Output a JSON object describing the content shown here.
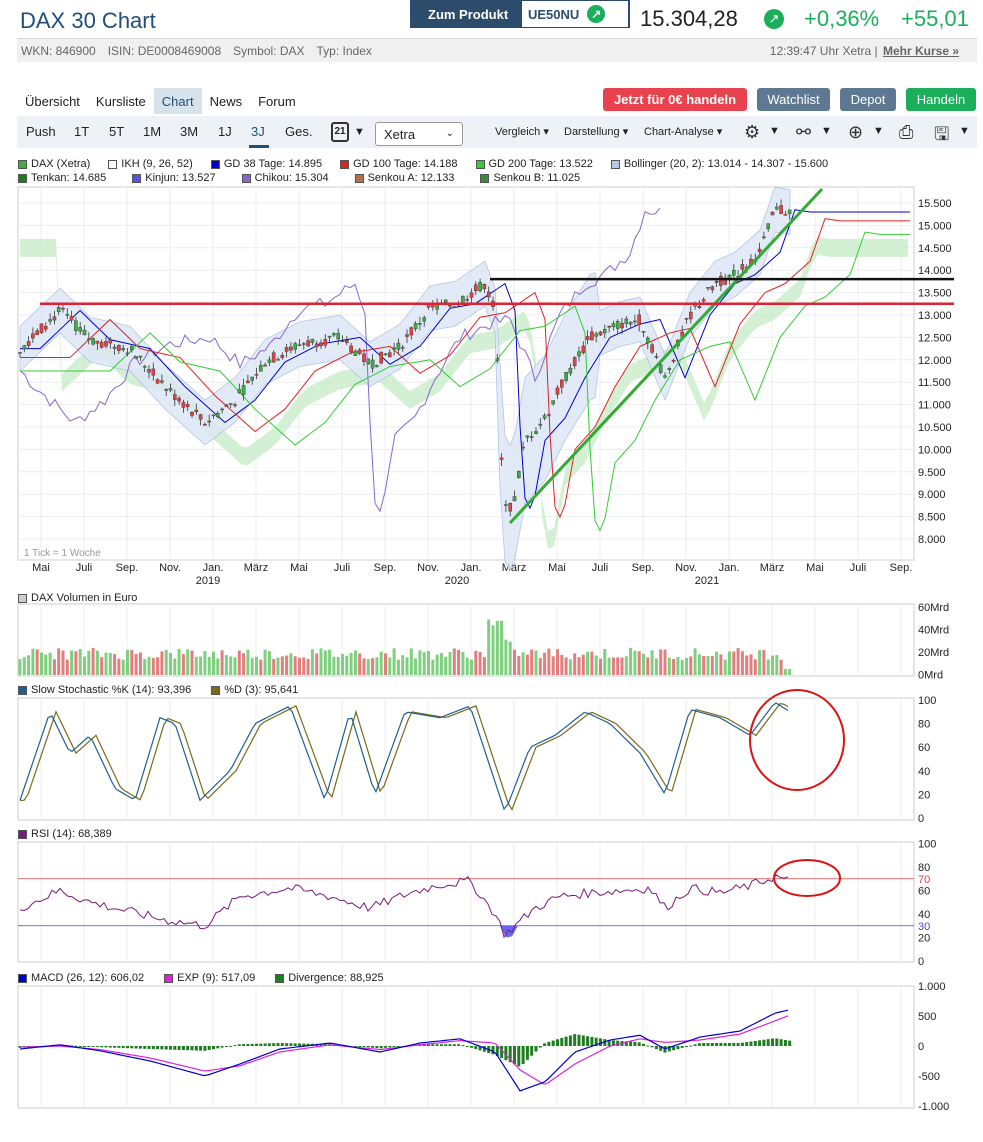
{
  "header": {
    "title": "DAX 30 Chart",
    "produkt_label": "Zum Produkt",
    "produkt_code": "UE50NU",
    "price": "15.304,28",
    "change_pct": "+0,36%",
    "change_abs": "+55,01"
  },
  "meta": {
    "wkn": "WKN: 846900",
    "isin": "ISIN: DE0008469008",
    "symbol": "Symbol: DAX",
    "typ": "Typ: Index",
    "time": "12:39:47 Uhr Xetra |",
    "more": "Mehr Kurse »"
  },
  "nav": {
    "tabs": [
      "Übersicht",
      "Kursliste",
      "Chart",
      "News",
      "Forum"
    ],
    "active": "Chart"
  },
  "actions": {
    "trade_free": "Jetzt für 0€ handeln",
    "watchlist": "Watchlist",
    "depot": "Depot",
    "handeln": "Handeln"
  },
  "toolbar": {
    "ranges": [
      "Push",
      "1T",
      "5T",
      "1M",
      "3M",
      "1J",
      "3J",
      "Ges."
    ],
    "selected_range": "3J",
    "calendar_day": "21",
    "exchange": "Xetra",
    "vergleich": "Vergleich",
    "darstellung": "Darstellung",
    "chart_analyse": "Chart-Analyse"
  },
  "legend_main": {
    "row1": [
      {
        "label": "DAX (Xetra)",
        "color": "#3cb043"
      },
      {
        "label": "IKH (9, 26, 52)",
        "color": "#ffffff"
      },
      {
        "label": "GD 38 Tage: 14.895",
        "color": "#0000cc"
      },
      {
        "label": "GD 100 Tage: 14.188",
        "color": "#dd2222"
      },
      {
        "label": "GD 200 Tage: 13.522",
        "color": "#33cc33"
      },
      {
        "label": "Bollinger (20, 2): 13.014 - 14.307 - 15.600",
        "color": "#b8c8e8"
      }
    ],
    "row2": [
      {
        "label": "Tenkan: 14.685",
        "color": "#1e7d1e"
      },
      {
        "label": "Kinjun: 13.527",
        "color": "#5555dd"
      },
      {
        "label": "Chikou: 15.304",
        "color": "#8866cc"
      },
      {
        "label": "Senkou A: 12.133",
        "color": "#b4704a"
      },
      {
        "label": "Senkou B: 11.025",
        "color": "#3d8a3d"
      }
    ]
  },
  "main_chart": {
    "y_ticks": [
      "15.500",
      "15.000",
      "14.500",
      "14.000",
      "13.500",
      "13.000",
      "12.500",
      "12.000",
      "11.500",
      "11.000",
      "10.500",
      "10.000",
      "9.500",
      "9.000",
      "8.500",
      "8.000"
    ],
    "x_months": [
      "Mai",
      "Juli",
      "Sep.",
      "Nov.",
      "Jan.",
      "März",
      "Mai",
      "Juli",
      "Sep.",
      "Nov.",
      "Jan.",
      "März",
      "Mai",
      "Juli",
      "Sep.",
      "Nov.",
      "Jan.",
      "März",
      "Mai",
      "Juli",
      "Sep."
    ],
    "x_years": [
      "2019",
      "2020",
      "2021"
    ],
    "tick_note": "1 Tick = 1 Woche"
  },
  "volume": {
    "legend": "DAX Volumen in Euro",
    "legend_color": "#cccccc",
    "y_ticks": [
      "60Mrd",
      "40Mrd",
      "20Mrd",
      "0Mrd"
    ]
  },
  "stochastic": {
    "legend_k": "Slow Stochastic %K (14): 93,396",
    "legend_k_color": "#1f5f8f",
    "legend_d": "%D (3): 95,641",
    "legend_d_color": "#7a6a1a",
    "y_ticks": [
      "100",
      "80",
      "60",
      "40",
      "20",
      "0"
    ]
  },
  "rsi": {
    "legend": "RSI (14): 68,389",
    "legend_color": "#7a1a7a",
    "y_ticks": [
      "100",
      "80",
      "60",
      "40",
      "20",
      "0"
    ],
    "upper_level": "70",
    "lower_level": "30"
  },
  "macd": {
    "legend_macd": "MACD (26, 12): 606,02",
    "legend_macd_color": "#0000cc",
    "legend_exp": "EXP (9): 517,09",
    "legend_exp_color": "#dd22dd",
    "legend_div": "Divergence: 88,925",
    "legend_div_color": "#1e7d1e",
    "y_ticks": [
      "1.000",
      "500",
      "0",
      "-500",
      "-1.000"
    ]
  }
}
